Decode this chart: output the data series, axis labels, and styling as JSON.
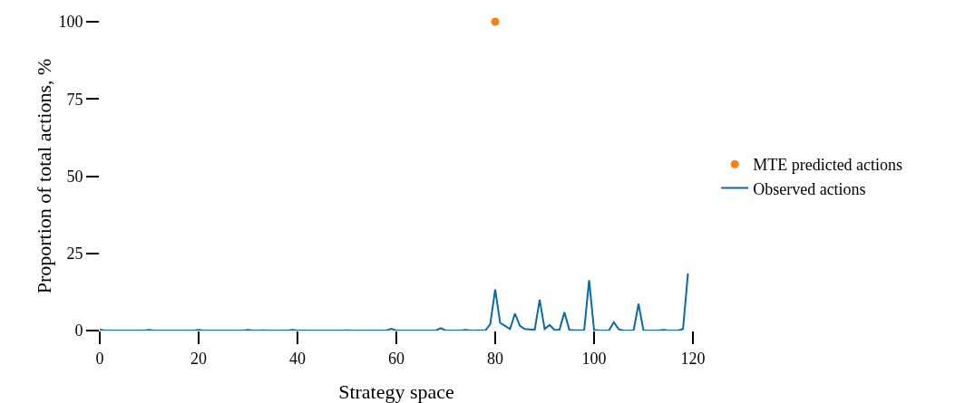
{
  "chart_data": {
    "type": "line",
    "xlabel": "Strategy space",
    "xlim": [
      0,
      120
    ],
    "ylim": [
      0,
      100
    ],
    "ylabel": "Proportion of total actions, %",
    "xticks": [
      0,
      20,
      40,
      60,
      80,
      100,
      120
    ],
    "yticks": [
      0,
      25,
      50,
      75,
      100
    ],
    "grid": false,
    "legend": "right",
    "series": [
      {
        "name": "MTE predicted actions",
        "type": "scatter",
        "marker": "circle",
        "color": "#ff7f0e",
        "x": [
          80
        ],
        "values": [
          100
        ]
      },
      {
        "name": "Observed actions",
        "marker": "none",
        "line_style": "solid",
        "color": "#0b6aa2",
        "x": [
          0,
          1,
          2,
          3,
          4,
          5,
          6,
          7,
          8,
          9,
          10,
          11,
          12,
          13,
          14,
          15,
          16,
          17,
          18,
          19,
          20,
          21,
          22,
          23,
          24,
          25,
          26,
          27,
          28,
          29,
          30,
          31,
          32,
          33,
          34,
          35,
          36,
          37,
          38,
          39,
          40,
          41,
          42,
          43,
          44,
          45,
          46,
          47,
          48,
          49,
          50,
          51,
          52,
          53,
          54,
          55,
          56,
          57,
          58,
          59,
          60,
          61,
          62,
          63,
          64,
          65,
          66,
          67,
          68,
          69,
          70,
          71,
          72,
          73,
          74,
          75,
          76,
          77,
          78,
          79,
          80,
          81,
          82,
          83,
          84,
          85,
          86,
          87,
          88,
          89,
          90,
          91,
          92,
          93,
          94,
          95,
          96,
          97,
          98,
          99,
          100,
          101,
          102,
          103,
          104,
          105,
          106,
          107,
          108,
          109,
          110,
          111,
          112,
          113,
          114,
          115,
          116,
          117,
          118,
          119
        ],
        "values": [
          0.3,
          0,
          0,
          0,
          0,
          0,
          0,
          0,
          0,
          0,
          0.2,
          0,
          0,
          0,
          0,
          0,
          0,
          0,
          0,
          0,
          0.2,
          0,
          0,
          0,
          0,
          0,
          0,
          0,
          0,
          0,
          0.2,
          0,
          0,
          0.1,
          0,
          0,
          0,
          0,
          0,
          0.2,
          0,
          0,
          0,
          0,
          0,
          0,
          0,
          0,
          0,
          0,
          0.1,
          0,
          0,
          0,
          0,
          0,
          0,
          0,
          0,
          0.6,
          0,
          0,
          0,
          0,
          0,
          0,
          0,
          0,
          0,
          0.8,
          0,
          0,
          0,
          0,
          0.2,
          0,
          0,
          0.1,
          0,
          2.1,
          13.3,
          2.5,
          1.5,
          0.5,
          5.5,
          1.5,
          0.5,
          0.4,
          0.3,
          10,
          0.5,
          1.8,
          0.2,
          0.2,
          5.9,
          0.2,
          0.1,
          0.1,
          0.1,
          16.3,
          0.2,
          0,
          0,
          0,
          2.7,
          0.4,
          0,
          0,
          0,
          8.7,
          0,
          0,
          0,
          0,
          0.2,
          0,
          0,
          0,
          0.5,
          18.5
        ]
      }
    ]
  }
}
